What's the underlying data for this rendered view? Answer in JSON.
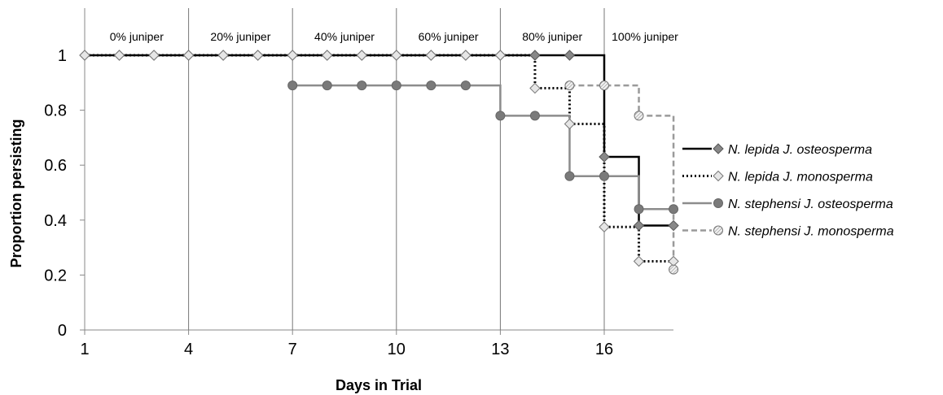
{
  "chart_data": {
    "type": "line",
    "step": true,
    "xlabel": "Days in Trial",
    "ylabel": "Proportion persisting",
    "xlim": [
      1,
      18
    ],
    "ylim": [
      0,
      1.1
    ],
    "x_ticks": [
      1,
      4,
      7,
      10,
      13,
      16
    ],
    "y_ticks": [
      0,
      0.2,
      0.4,
      0.6,
      0.8,
      1
    ],
    "grid": false,
    "phase_dividers": [
      4,
      7,
      10,
      13,
      16
    ],
    "phases": [
      {
        "label": "0% juniper",
        "start": 1,
        "end": 4
      },
      {
        "label": "20% juniper",
        "start": 4,
        "end": 7
      },
      {
        "label": "40% juniper",
        "start": 7,
        "end": 10
      },
      {
        "label": "60% juniper",
        "start": 10,
        "end": 13
      },
      {
        "label": "80% juniper",
        "start": 13,
        "end": 16
      },
      {
        "label": "100% juniper",
        "start": 16,
        "end": 18
      }
    ],
    "legend_position": "right",
    "series": [
      {
        "name": "N. lepida J. osteosperma",
        "color": "#000000",
        "line": "solid",
        "marker": "diamond-filled",
        "marker_fill": "#888888",
        "x": [
          1,
          2,
          3,
          4,
          5,
          6,
          7,
          8,
          9,
          10,
          11,
          12,
          13,
          14,
          15,
          16,
          17,
          18
        ],
        "y": [
          1,
          1,
          1,
          1,
          1,
          1,
          1,
          1,
          1,
          1,
          1,
          1,
          1,
          1,
          1,
          0.63,
          0.38,
          0.38
        ]
      },
      {
        "name": "N. lepida J. monosperma",
        "color": "#000000",
        "line": "dotted",
        "marker": "diamond-open",
        "marker_fill": "#e6e6e6",
        "x": [
          1,
          2,
          3,
          4,
          5,
          6,
          7,
          8,
          9,
          10,
          11,
          12,
          13,
          14,
          15,
          16,
          17,
          18
        ],
        "y": [
          1,
          1,
          1,
          1,
          1,
          1,
          1,
          1,
          1,
          1,
          1,
          1,
          1,
          0.88,
          0.75,
          0.375,
          0.25,
          0.25
        ]
      },
      {
        "name": "N. stephensi J. osteosperma",
        "color": "#8c8c8c",
        "line": "solid",
        "marker": "circle-filled",
        "marker_fill": "#7a7a7a",
        "x": [
          7,
          8,
          9,
          10,
          11,
          12,
          13,
          14,
          15,
          16,
          17,
          18
        ],
        "y": [
          0.89,
          0.89,
          0.89,
          0.89,
          0.89,
          0.89,
          0.78,
          0.78,
          0.56,
          0.56,
          0.44,
          0.44
        ]
      },
      {
        "name": "N. stephensi J. monosperma",
        "color": "#9a9a9a",
        "line": "dashed",
        "marker": "circle-hatched",
        "marker_fill": "#f2f2f2",
        "x": [
          15,
          16,
          17,
          18
        ],
        "y": [
          0.89,
          0.89,
          0.78,
          0.22
        ]
      }
    ]
  }
}
